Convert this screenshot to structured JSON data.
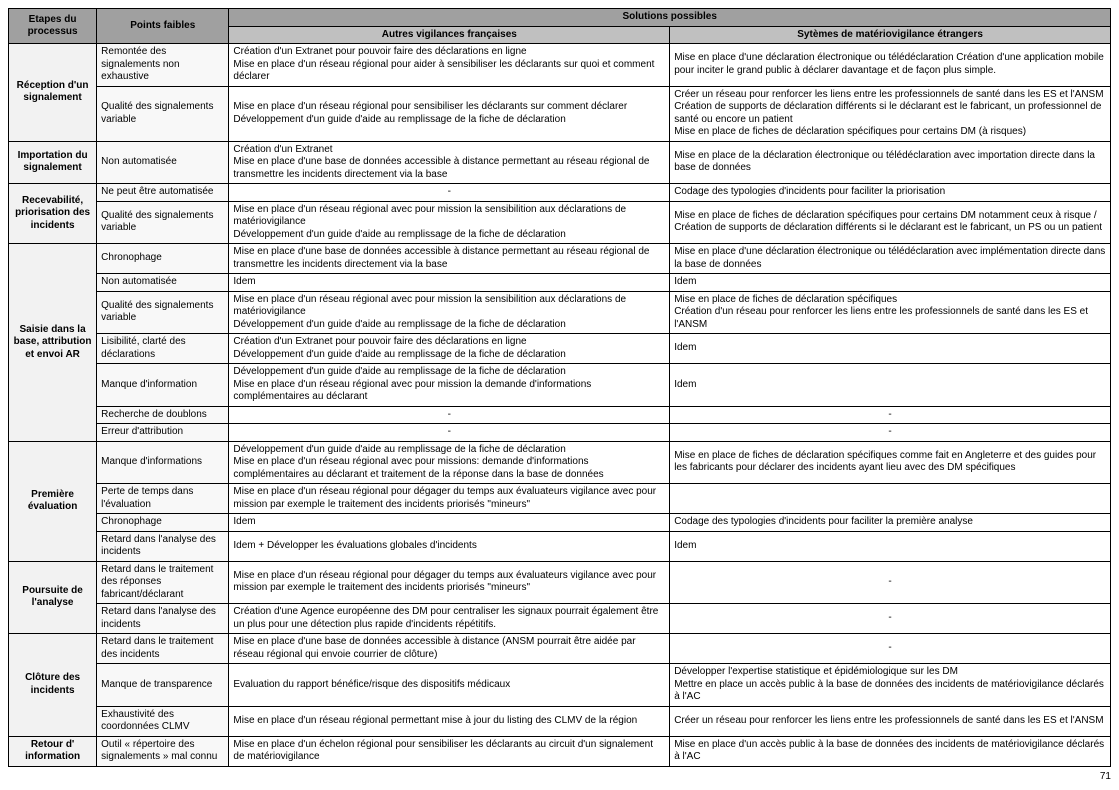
{
  "headers": {
    "etapes": "Etapes du processus",
    "pf": "Points faibles",
    "solutions": "Solutions possibles",
    "sol_fr": "Autres vigilances françaises",
    "sol_etr": "Sytèmes de matériovigilance étrangers"
  },
  "groups": [
    {
      "etape": "Réception d'un signalement",
      "rows": [
        {
          "pf": "Remontée des signalements non exhaustive",
          "fr": "Création d'un Extranet pour pouvoir faire des déclarations en ligne\nMise en place d'un réseau régional pour aider à sensibiliser les déclarants sur quoi et comment déclarer",
          "etr": "Mise en place d'une déclaration électronique ou télédéclaration Création d'une application mobile pour inciter le grand public à déclarer davantage et de façon plus simple."
        },
        {
          "pf": "Qualité des signalements variable",
          "fr": "Mise en place d'un réseau régional pour sensibiliser les déclarants sur comment déclarer\nDéveloppement d'un guide d'aide au remplissage de la fiche de déclaration",
          "etr": "Créer un réseau pour renforcer les liens entre les professionnels de santé dans les ES et l'ANSM\nCréation de supports de déclaration différents si le déclarant est le fabricant, un professionnel de santé ou encore un patient\nMise en place de fiches de déclaration spécifiques pour certains DM (à risques)"
        }
      ]
    },
    {
      "etape": "Importation du signalement",
      "rows": [
        {
          "pf": "Non automatisée",
          "fr": "Création d'un Extranet\nMise en place d'une base de données accessible à distance permettant au réseau régional de transmettre les incidents directement via la base",
          "etr": "Mise en place de la déclaration électronique ou télédéclaration avec importation directe dans la base de données"
        }
      ]
    },
    {
      "etape": "Recevabilité, priorisation des incidents",
      "rows": [
        {
          "pf": "Ne peut être automatisée",
          "fr": "-",
          "fr_center": true,
          "etr": "Codage des typologies d'incidents pour faciliter la priorisation"
        },
        {
          "pf": "Qualité des signalements variable",
          "fr": "Mise en place d'un réseau régional avec pour mission la sensibilition aux déclarations de matériovigilance\n Développement d'un guide d'aide au remplissage de la fiche de déclaration",
          "etr": "Mise en place de fiches de déclaration spécifiques pour certains DM notamment ceux à risque / Création de supports de déclaration différents si le déclarant est le fabricant, un PS ou un patient"
        }
      ]
    },
    {
      "etape": "Saisie dans la base, attribution et envoi AR",
      "rows": [
        {
          "pf": "Chronophage",
          "fr": "Mise en place d'une base de données accessible à distance permettant au réseau régional de transmettre les incidents directement via la base",
          "etr": "Mise en place d'une déclaration électronique ou télédéclaration avec implémentation directe dans la base de données"
        },
        {
          "pf": "Non automatisée",
          "fr": "Idem",
          "etr": "Idem"
        },
        {
          "pf": "Qualité des signalements variable",
          "fr": "Mise en place d'un réseau régional avec pour mission la sensibilition aux déclarations de matériovigilance\nDéveloppement d'un guide d'aide au remplissage de la fiche de déclaration",
          "etr": "Mise en place de fiches de déclaration spécifiques\nCréation d'un réseau pour renforcer les liens entre les professionnels de santé dans les ES et l'ANSM"
        },
        {
          "pf": "Lisibilité, clarté des déclarations",
          "fr": "Création d'un Extranet pour pouvoir faire des déclarations en ligne\nDéveloppement d'un guide d'aide au remplissage de la fiche de déclaration",
          "etr": "Idem"
        },
        {
          "pf": "Manque d'information",
          "fr": "Développement d'un guide d'aide au remplissage de la fiche de déclaration\nMise en place d'un réseau régional avec pour mission la demande d'informations complémentaires au déclarant",
          "etr": "Idem"
        },
        {
          "pf": "Recherche de doublons",
          "fr": "-",
          "fr_center": true,
          "etr": "-",
          "etr_center": true
        },
        {
          "pf": "Erreur d'attribution",
          "fr": "-",
          "fr_center": true,
          "etr": "-",
          "etr_center": true
        }
      ]
    },
    {
      "etape": "Première évaluation",
      "rows": [
        {
          "pf": "Manque d'informations",
          "fr": "Développement d'un guide d'aide au remplissage de la fiche de déclaration\nMise en place d'un réseau régional avec pour missions: demande d'informations complémentaires au déclarant et traitement de la réponse dans la base de données",
          "etr": "Mise en place de fiches de déclaration spécifiques comme fait en Angleterre et des guides pour les fabricants pour déclarer des incidents ayant lieu avec des DM spécifiques"
        },
        {
          "pf": "Perte de temps dans l'évaluation",
          "fr": "Mise en place d'un réseau régional pour dégager du temps aux évaluateurs vigilance avec pour mission par exemple le traitement des incidents priorisés \"mineurs\"",
          "etr": ""
        },
        {
          "pf": "Chronophage",
          "fr": "Idem",
          "etr": "Codage des typologies d'incidents pour faciliter la première analyse"
        },
        {
          "pf": "Retard dans l'analyse des incidents",
          "fr": "Idem + Développer les évaluations globales d'incidents",
          "etr": "Idem"
        }
      ]
    },
    {
      "etape": "Poursuite de l'analyse",
      "rows": [
        {
          "pf": "Retard dans le traitement des réponses fabricant/déclarant",
          "fr": "Mise en place d'un réseau régional pour dégager du temps aux évaluateurs vigilance avec pour mission par exemple le traitement des incidents priorisés \"mineurs\"",
          "etr": "-",
          "etr_center": true
        },
        {
          "pf": "Retard dans l'analyse des incidents",
          "fr": "Création d'une Agence européenne des DM pour centraliser les signaux pourrait également être un plus pour une détection plus rapide d'incidents répétitifs.",
          "etr": "-",
          "etr_center": true
        }
      ]
    },
    {
      "etape": "Clôture des incidents",
      "rows": [
        {
          "pf": "Retard dans le traitement des incidents",
          "fr": "Mise en place d'une base de données accessible à distance (ANSM pourrait être aidée par réseau régional qui envoie courrier de clôture)",
          "etr": "-",
          "etr_center": true
        },
        {
          "pf": "Manque de transparence",
          "fr": "Evaluation du rapport bénéfice/risque des dispositifs médicaux",
          "etr": "Développer l'expertise statistique et épidémiologique sur les DM\nMettre en place un accès public à la base de données des incidents de matériovigilance déclarés à l'AC"
        },
        {
          "pf": "Exhaustivité des coordonnées CLMV",
          "fr": "Mise en place d'un réseau régional permettant mise à jour du listing des CLMV de la région",
          "etr": "Créer un réseau pour renforcer les liens entre les professionnels de santé dans les ES et l'ANSM"
        }
      ]
    },
    {
      "etape": "Retour d' information",
      "rows": [
        {
          "pf": "Outil « répertoire des signalements » mal connu",
          "fr": "Mise en place d'un échelon régional pour sensibiliser les déclarants au  circuit d'un signalement de matériovigilance",
          "etr": "Mise en place d'un accès public à la base de données des incidents de matériovigilance déclarés à l'AC"
        }
      ]
    }
  ],
  "page_number": "71"
}
